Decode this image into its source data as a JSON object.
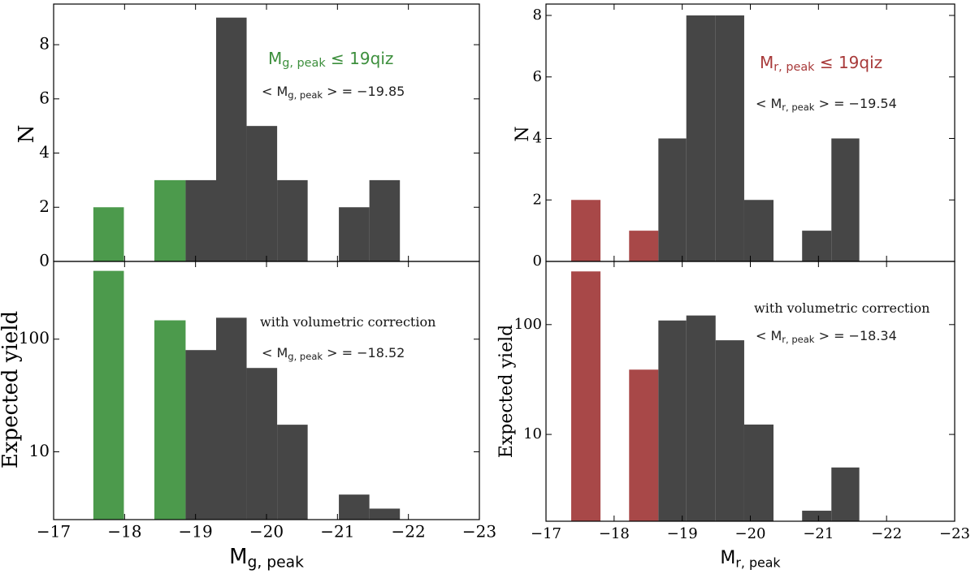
{
  "chart_data": [
    {
      "type": "histogram",
      "bins": [
        -17.56,
        -17.99,
        -18.42,
        -18.86,
        -19.29,
        -19.72,
        -20.15,
        -20.58,
        -21.02,
        -21.45,
        -21.88
      ],
      "values": [
        2,
        0,
        3,
        3,
        9,
        5,
        3,
        0,
        2,
        3
      ],
      "colors": [
        "#4c9a4c",
        "#4c9a4c",
        "#4c9a4c",
        "#464646",
        "#464646",
        "#464646",
        "#464646",
        "#464646",
        "#464646",
        "#464646"
      ],
      "xlim": [
        -17,
        -23
      ],
      "xticks": [
        -17,
        -18,
        -19,
        -20,
        -21,
        -22,
        -23
      ],
      "ylim": [
        0,
        9.5
      ],
      "yticks": [
        0,
        2,
        4,
        6,
        8
      ],
      "log_y": false,
      "ylabel": "N",
      "annotations": [
        {
          "prefix": "M",
          "sub": "g, peak",
          "suffix": " ≤ 19qiz",
          "color": "#3d8f3d"
        },
        {
          "prefix": "< M",
          "sub": "g, peak",
          "suffix": " >  =  −19.85",
          "color": "#222222"
        }
      ]
    },
    {
      "type": "histogram",
      "bins": [
        -17.56,
        -17.99,
        -18.42,
        -18.86,
        -19.29,
        -19.72,
        -20.15,
        -20.58,
        -21.02,
        -21.45,
        -21.88
      ],
      "values": [
        404,
        null,
        147,
        80,
        155,
        55.5,
        17.4,
        null,
        4.17,
        3.13
      ],
      "colors": [
        "#4c9a4c",
        "#4c9a4c",
        "#4c9a4c",
        "#464646",
        "#464646",
        "#464646",
        "#464646",
        "#464646",
        "#464646",
        "#464646"
      ],
      "xlim": [
        -17,
        -23
      ],
      "xticks": [
        {
          "value": -17,
          "label": "−17"
        },
        {
          "value": -18,
          "label": "−18"
        },
        {
          "value": -19,
          "label": "−19"
        },
        {
          "value": -20,
          "label": "−20"
        },
        {
          "value": -21,
          "label": "−21"
        },
        {
          "value": -22,
          "label": "−22"
        },
        {
          "value": -23,
          "label": "−23"
        }
      ],
      "ylim": [
        2.5,
        490
      ],
      "yticks": [
        10,
        100
      ],
      "log_y": true,
      "ylabel": "Expected yield",
      "xlabel": {
        "prefix": "M",
        "sub": "g, peak"
      },
      "annotations": [
        {
          "text": "with volumetric correction",
          "color": "#111111"
        },
        {
          "prefix": "< M",
          "sub": "g, peak",
          "suffix": " >  =  −18.52",
          "color": "#222222"
        }
      ]
    },
    {
      "type": "histogram",
      "bins": [
        -17.37,
        -17.8,
        -18.22,
        -18.65,
        -19.06,
        -19.49,
        -19.91,
        -20.34,
        -20.76,
        -21.19,
        -21.6
      ],
      "values": [
        2,
        0,
        1,
        4,
        8,
        8,
        2,
        0,
        1,
        4
      ],
      "colors": [
        "#a84848",
        "#a84848",
        "#a84848",
        "#464646",
        "#464646",
        "#464646",
        "#464646",
        "#464646",
        "#464646",
        "#464646"
      ],
      "xlim": [
        -17,
        -23
      ],
      "xticks": [
        -17,
        -18,
        -19,
        -20,
        -21,
        -22,
        -23
      ],
      "ylim": [
        0,
        8.37
      ],
      "yticks": [
        0,
        2,
        4,
        6,
        8
      ],
      "log_y": false,
      "ylabel": "N",
      "annotations": [
        {
          "prefix": "M",
          "sub": "r, peak",
          "suffix": " ≤ 19qiz",
          "color": "#a83a3a"
        },
        {
          "prefix": "< M",
          "sub": "r, peak",
          "suffix": " >  =  −19.54",
          "color": "#222222"
        }
      ]
    },
    {
      "type": "histogram",
      "bins": [
        -17.37,
        -17.8,
        -18.22,
        -18.65,
        -19.06,
        -19.49,
        -19.91,
        -20.34,
        -20.76,
        -21.19,
        -21.6
      ],
      "values": [
        305,
        null,
        38.9,
        109,
        121,
        72,
        12.3,
        null,
        2.02,
        5.0
      ],
      "colors": [
        "#a84848",
        "#a84848",
        "#a84848",
        "#464646",
        "#464646",
        "#464646",
        "#464646",
        "#464646",
        "#464646",
        "#464646"
      ],
      "xlim": [
        -17,
        -23
      ],
      "xticks": [
        {
          "value": -17,
          "label": "−17"
        },
        {
          "value": -18,
          "label": "−18"
        },
        {
          "value": -19,
          "label": "−19"
        },
        {
          "value": -20,
          "label": "−20"
        },
        {
          "value": -21,
          "label": "−21"
        },
        {
          "value": -22,
          "label": "−22"
        },
        {
          "value": -23,
          "label": "−23"
        }
      ],
      "ylim": [
        1.62,
        376
      ],
      "yticks": [
        10,
        100
      ],
      "log_y": true,
      "ylabel": "Expected yield",
      "xlabel": {
        "prefix": "M",
        "sub": "r, peak"
      },
      "annotations": [
        {
          "text": "with volumetric correction",
          "color": "#111111"
        },
        {
          "prefix": "< M",
          "sub": "r, peak",
          "suffix": " >  =  −18.34",
          "color": "#222222"
        }
      ]
    }
  ]
}
